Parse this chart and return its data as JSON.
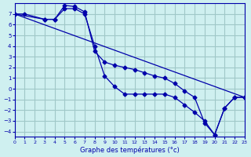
{
  "title": "Graphe des températures (°c)",
  "background_color": "#cff0f0",
  "grid_color": "#a0c8c8",
  "line_color": "#0000aa",
  "xlim": [
    0,
    23
  ],
  "ylim": [
    -4.5,
    8
  ],
  "xticks": [
    0,
    1,
    2,
    3,
    4,
    5,
    6,
    7,
    8,
    9,
    10,
    11,
    12,
    13,
    14,
    15,
    16,
    17,
    18,
    19,
    20,
    21,
    22,
    23
  ],
  "yticks": [
    -4,
    -3,
    -2,
    -1,
    0,
    1,
    2,
    3,
    4,
    5,
    6,
    7
  ],
  "series1_x": [
    0,
    1,
    3,
    4,
    5,
    6,
    7,
    8,
    9,
    10,
    11,
    12,
    13,
    14,
    15,
    16,
    17,
    18,
    19,
    20,
    21,
    22,
    23
  ],
  "series1_y": [
    7,
    7,
    6.5,
    6.5,
    7.5,
    7.5,
    7,
    4,
    1.2,
    0.2,
    -0.5,
    -0.5,
    -0.5,
    -0.5,
    -0.5,
    -0.8,
    -1.5,
    -2.2,
    -3,
    -4.3,
    -1.8,
    -0.8,
    -0.8
  ],
  "series2_x": [
    0,
    3,
    4,
    5,
    6,
    7,
    8,
    9,
    10,
    11,
    12,
    13,
    14,
    15,
    16,
    17,
    18,
    19,
    20,
    21,
    22,
    23
  ],
  "series2_y": [
    7,
    6.5,
    6.5,
    7.8,
    7.7,
    7.2,
    3.5,
    2.5,
    2.2,
    2.0,
    1.8,
    1.5,
    1.2,
    1.0,
    0.5,
    -0.2,
    -0.8,
    -3.2,
    -4.3,
    -1.8,
    -0.8,
    -0.8
  ],
  "series3_x": [
    0,
    23
  ],
  "series3_y": [
    7,
    -0.8
  ]
}
